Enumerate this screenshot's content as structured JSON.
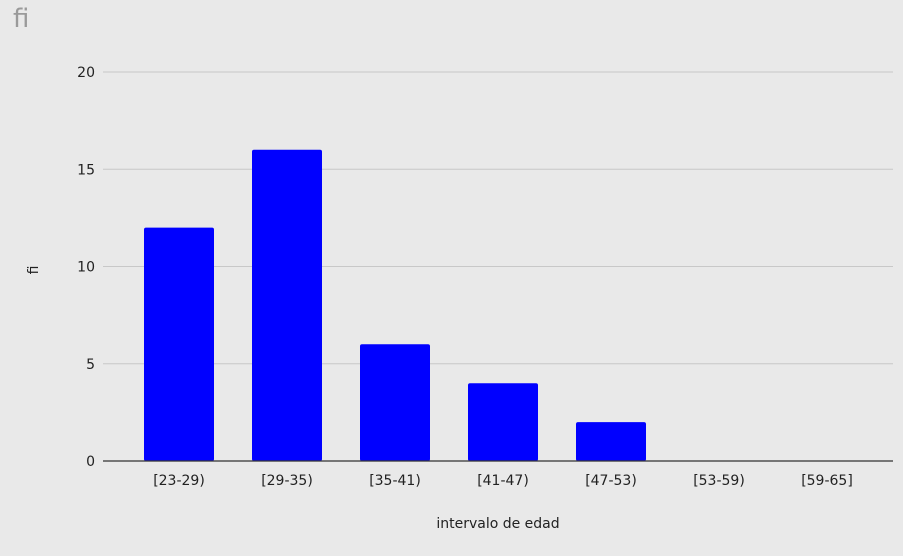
{
  "chart_data": {
    "type": "bar",
    "title": "fi",
    "xlabel": "intervalo de edad",
    "ylabel": "fi",
    "categories": [
      "[23-29)",
      "[29-35)",
      "[35-41)",
      "[41-47)",
      "[47-53)",
      "[53-59)",
      "[59-65]"
    ],
    "values": [
      12,
      16,
      6,
      4,
      2,
      0,
      0
    ],
    "ylim": [
      0,
      20
    ],
    "yticks": [
      0,
      5,
      10,
      15,
      20
    ],
    "grid": true,
    "legend": "none",
    "bar_color": "#0000ff"
  }
}
